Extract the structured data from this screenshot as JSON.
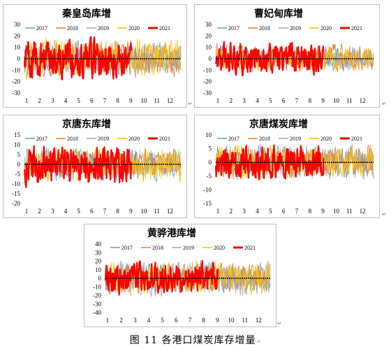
{
  "caption": "图 11  各港口煤炭库存增量",
  "paragraph_mark": "↵",
  "colors": {
    "2017": "#5b9bd5",
    "2018": "#ed7d31",
    "2019": "#a5a5a5",
    "2020": "#ffc000",
    "2021": "#ff0000",
    "zero": "#000000"
  },
  "chart_data": [
    {
      "type": "line",
      "title": "秦皇岛库增",
      "ylim": [
        -30,
        30
      ],
      "yticks": [
        30,
        20,
        10,
        0,
        -10,
        -20,
        -30
      ],
      "categories": [
        "1",
        "2",
        "3",
        "4",
        "5",
        "6",
        "7",
        "8",
        "9",
        "10",
        "11",
        "12"
      ],
      "series": [
        {
          "name": "2017",
          "amplitude": 12
        },
        {
          "name": "2018",
          "amplitude": 12
        },
        {
          "name": "2019",
          "amplitude": 12
        },
        {
          "name": "2020",
          "amplitude": 14
        },
        {
          "name": "2021",
          "amplitude": 14,
          "end_month": 8.2
        }
      ]
    },
    {
      "type": "line",
      "title": "曹妃甸库增",
      "ylim": [
        -30,
        30
      ],
      "yticks": [
        30,
        20,
        10,
        0,
        -10,
        -20,
        -30
      ],
      "categories": [
        "1",
        "2",
        "3",
        "4",
        "5",
        "6",
        "7",
        "8",
        "9",
        "10",
        "11",
        "12"
      ],
      "series": [
        {
          "name": "2017",
          "amplitude": 9
        },
        {
          "name": "2018",
          "amplitude": 10
        },
        {
          "name": "2019",
          "amplitude": 7
        },
        {
          "name": "2020",
          "amplitude": 8
        },
        {
          "name": "2021",
          "amplitude": 11,
          "end_month": 8.2
        }
      ]
    },
    {
      "type": "line",
      "title": "京唐东库增",
      "ylim": [
        -20,
        15
      ],
      "yticks": [
        15,
        10,
        5,
        0,
        -5,
        -10,
        -15,
        -20
      ],
      "categories": [
        "1",
        "2",
        "3",
        "4",
        "5",
        "6",
        "7",
        "8",
        "9",
        "10",
        "11",
        "12"
      ],
      "series": [
        {
          "name": "2017",
          "amplitude": 7
        },
        {
          "name": "2018",
          "amplitude": 6
        },
        {
          "name": "2019",
          "amplitude": 6
        },
        {
          "name": "2020",
          "amplitude": 7
        },
        {
          "name": "2021",
          "amplitude": 8,
          "end_month": 8.2
        }
      ]
    },
    {
      "type": "line",
      "title": "京唐煤炭库增",
      "ylim": [
        -15,
        10
      ],
      "yticks": [
        10,
        5,
        0,
        -5,
        -10,
        -15
      ],
      "categories": [
        "1",
        "2",
        "3",
        "4",
        "5",
        "6",
        "7",
        "8",
        "9",
        "10",
        "11",
        "12"
      ],
      "series": [
        {
          "name": "2017",
          "amplitude": 5
        },
        {
          "name": "2018",
          "amplitude": 5
        },
        {
          "name": "2019",
          "amplitude": 4
        },
        {
          "name": "2020",
          "amplitude": 5
        },
        {
          "name": "2021",
          "amplitude": 5,
          "end_month": 8.2
        }
      ]
    },
    {
      "type": "line",
      "title": "黄骅港库增",
      "ylim": [
        -40,
        40
      ],
      "yticks": [
        40,
        30,
        20,
        10,
        0,
        -10,
        -20,
        -30,
        -40
      ],
      "categories": [
        "1",
        "2",
        "3",
        "4",
        "5",
        "6",
        "7",
        "8",
        "9",
        "10",
        "11",
        "12"
      ],
      "series": [
        {
          "name": "2017",
          "amplitude": 16
        },
        {
          "name": "2018",
          "amplitude": 14
        },
        {
          "name": "2019",
          "amplitude": 16
        },
        {
          "name": "2020",
          "amplitude": 16
        },
        {
          "name": "2021",
          "amplitude": 15,
          "end_month": 8.2
        }
      ]
    }
  ]
}
